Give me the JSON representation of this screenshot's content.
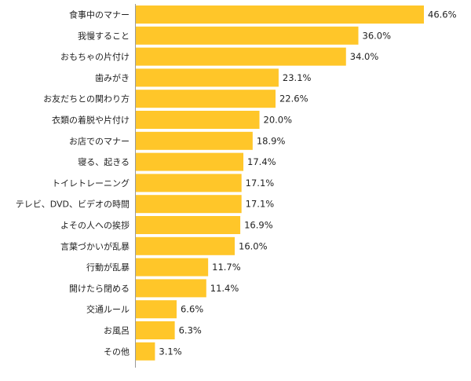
{
  "chart_data": {
    "type": "bar",
    "orientation": "horizontal",
    "categories": [
      "食事中のマナー",
      "我慢すること",
      "おもちゃの片付け",
      "歯みがき",
      "お友だちとの関わり方",
      "衣類の着脱や片付け",
      "お店でのマナー",
      "寝る、起きる",
      "トイレトレーニング",
      "テレビ、DVD、ビデオの時間",
      "よその人への挨拶",
      "言葉づかいが乱暴",
      "行動が乱暴",
      "開けたら閉める",
      "交通ルール",
      "お風呂",
      "その他"
    ],
    "values": [
      46.6,
      36.0,
      34.0,
      23.1,
      22.6,
      20.0,
      18.9,
      17.4,
      17.1,
      17.1,
      16.9,
      16.0,
      11.7,
      11.4,
      6.6,
      6.3,
      3.1
    ],
    "value_labels": [
      "46.6%",
      "36.0%",
      "34.0%",
      "23.1%",
      "22.6%",
      "20.0%",
      "18.9%",
      "17.4%",
      "17.1%",
      "17.1%",
      "16.9%",
      "16.0%",
      "11.7%",
      "11.4%",
      "6.6%",
      "6.3%",
      "3.1%"
    ],
    "xlim": [
      0,
      46.6
    ],
    "bar_color": "#FFC629",
    "axis_color": "#999999",
    "grid": false,
    "legend": "none"
  }
}
